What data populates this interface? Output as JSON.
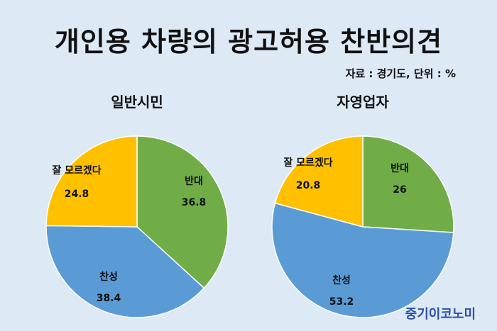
{
  "title": "개인용 차량의 광고허용 찬반의견",
  "source": "자료 : 경기도, 단위 : %",
  "brand": "중기이코노미",
  "colors": {
    "oppose": "#70ad47",
    "favor": "#5b9bd5",
    "unsure": "#ffc000",
    "background": "#dde9f5"
  },
  "chart_data": [
    {
      "type": "pie",
      "title": "일반시민",
      "slices": [
        {
          "label": "반대",
          "value": 36.8
        },
        {
          "label": "찬성",
          "value": 38.4
        },
        {
          "label": "잘 모르겠다",
          "value": 24.8
        }
      ]
    },
    {
      "type": "pie",
      "title": "자영업자",
      "slices": [
        {
          "label": "반대",
          "value": 26
        },
        {
          "label": "찬성",
          "value": 53.2
        },
        {
          "label": "잘 모르겠다",
          "value": 20.8
        }
      ]
    }
  ]
}
